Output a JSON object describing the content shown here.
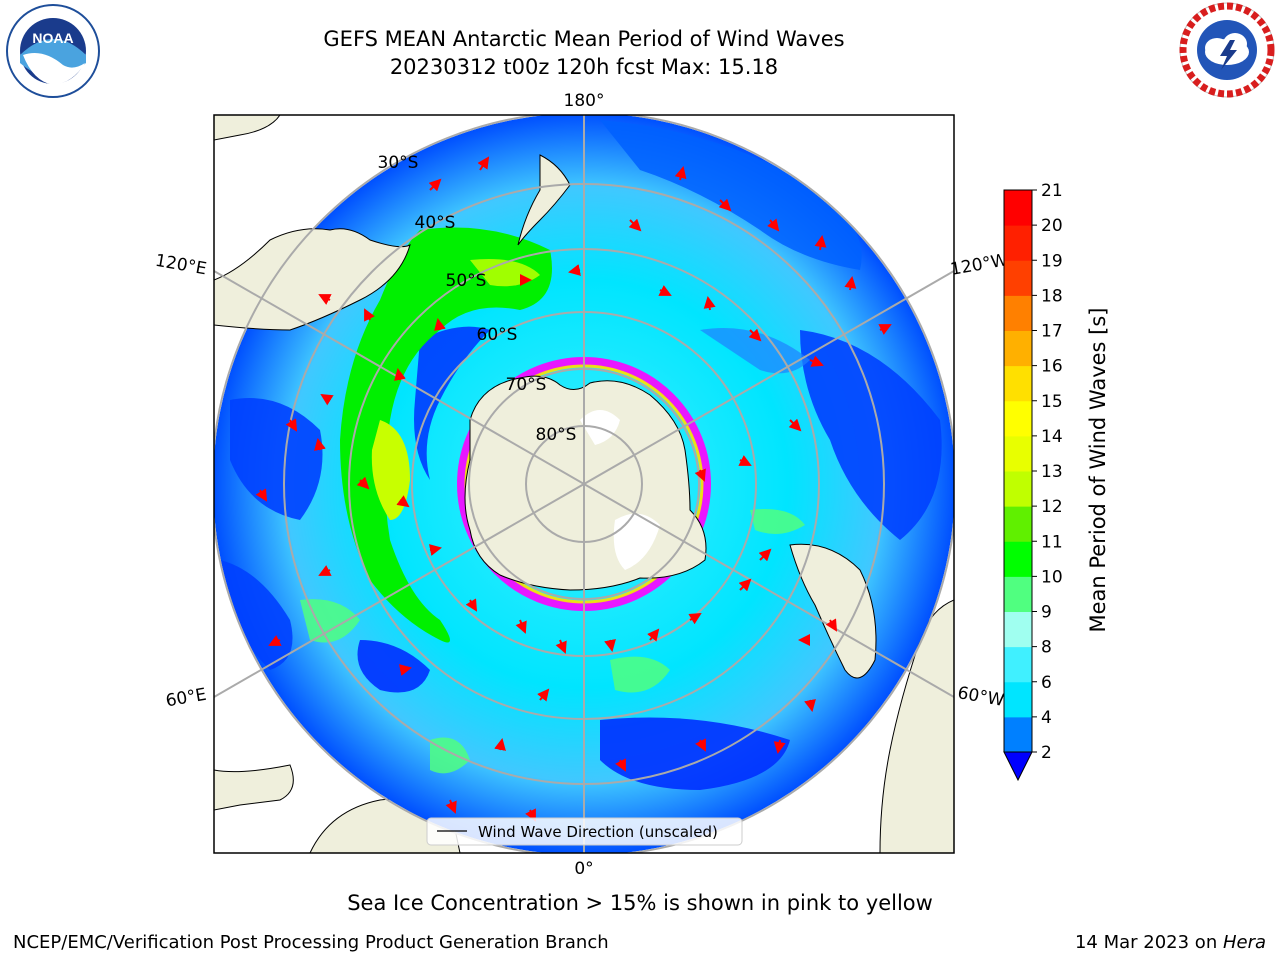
{
  "header": {
    "title_line1": "GEFS MEAN Antarctic Mean Period of Wind Waves",
    "title_line2": "20230312 t00z 120h fcst   Max: 15.18"
  },
  "logos": {
    "left": "NOAA",
    "right": "NATIONAL WEATHER SERVICE"
  },
  "map": {
    "projection": "south-polar-stereographic",
    "lon_labels": {
      "top": "180°",
      "bottom": "0°",
      "left_upper": "120°E",
      "left_lower": "60°E",
      "right_upper": "120°W",
      "right_lower": "60°W"
    },
    "lat_labels": [
      "30°S",
      "40°S",
      "50°S",
      "60°S",
      "70°S",
      "80°S"
    ],
    "legend_label": "Wind Wave Direction (unscaled)",
    "colors": {
      "land": "#efefdc",
      "ocean_low": "#0000ff",
      "ocean_mid": "#00e5ff",
      "ocean_high": "#00ff00",
      "arrow": "#ff0000",
      "ice": "#ff00ff"
    }
  },
  "colorbar": {
    "label": "Mean Period of Wind Waves [s]",
    "ticks": [
      "2",
      "4",
      "6",
      "8",
      "9",
      "10",
      "11",
      "12",
      "13",
      "14",
      "15",
      "16",
      "17",
      "18",
      "19",
      "20",
      "21"
    ],
    "colors": [
      "#0000ff",
      "#0080ff",
      "#00e5ff",
      "#40f0ff",
      "#a0fff0",
      "#50ff80",
      "#00ff00",
      "#60f000",
      "#c0ff00",
      "#e8ff00",
      "#ffff00",
      "#ffe000",
      "#ffb000",
      "#ff8000",
      "#ff4000",
      "#ff2000",
      "#ff0000"
    ]
  },
  "footer": {
    "note": "Sea Ice Concentration > 15% is shown in pink to yellow",
    "credit_left": "NCEP/EMC/Verification Post Processing Product Generation Branch",
    "credit_right_prefix": "14 Mar 2023 on ",
    "credit_right_host": "Hera"
  }
}
